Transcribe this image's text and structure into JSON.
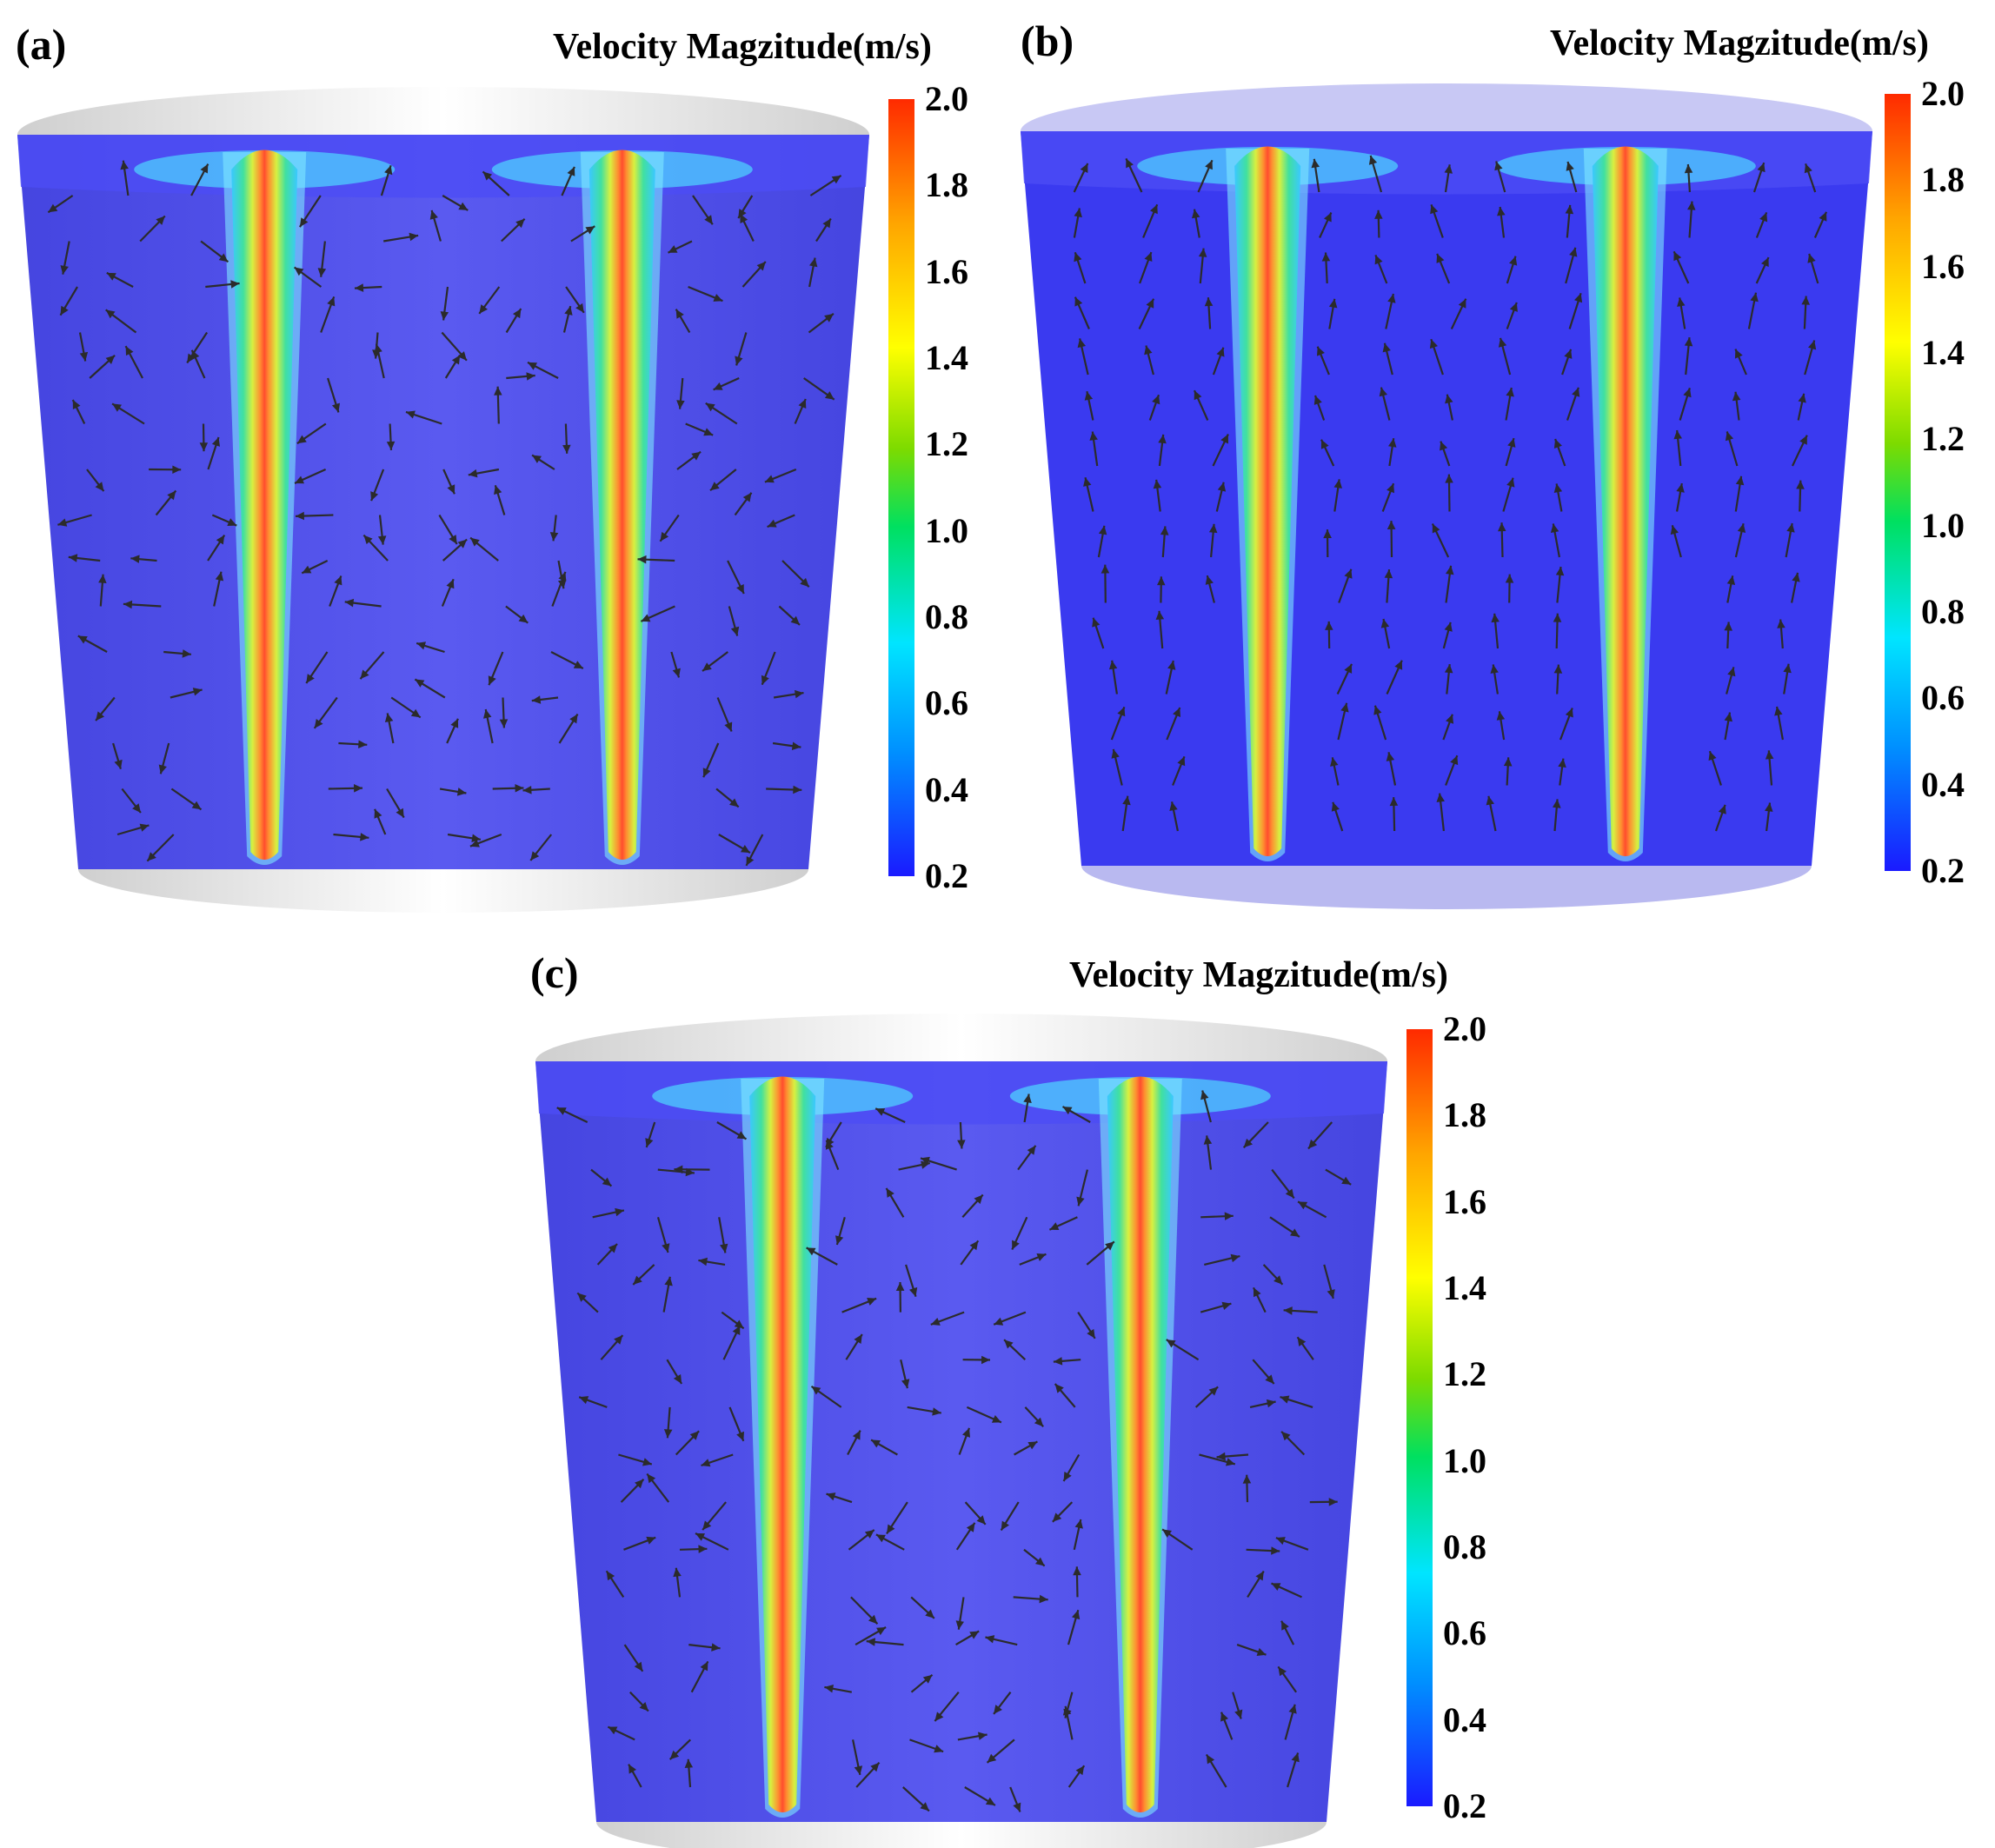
{
  "figure": {
    "panels": [
      {
        "id": "a",
        "label": "(a)"
      },
      {
        "id": "b",
        "label": "(b)"
      },
      {
        "id": "c",
        "label": "(c)"
      }
    ],
    "colorbar": {
      "title": "Velocity Magzitude(m/s)",
      "ticks": [
        "2.0",
        "1.8",
        "1.6",
        "1.4",
        "1.2",
        "1.0",
        "0.8",
        "0.6",
        "0.4",
        "0.2"
      ],
      "min": 0.2,
      "max": 2.0
    },
    "colors": {
      "fluid": "#5a5af0",
      "jet_core": "#ff4d2e",
      "vessel": "#e8e8e8",
      "vectors": "#2b2b2b"
    }
  }
}
